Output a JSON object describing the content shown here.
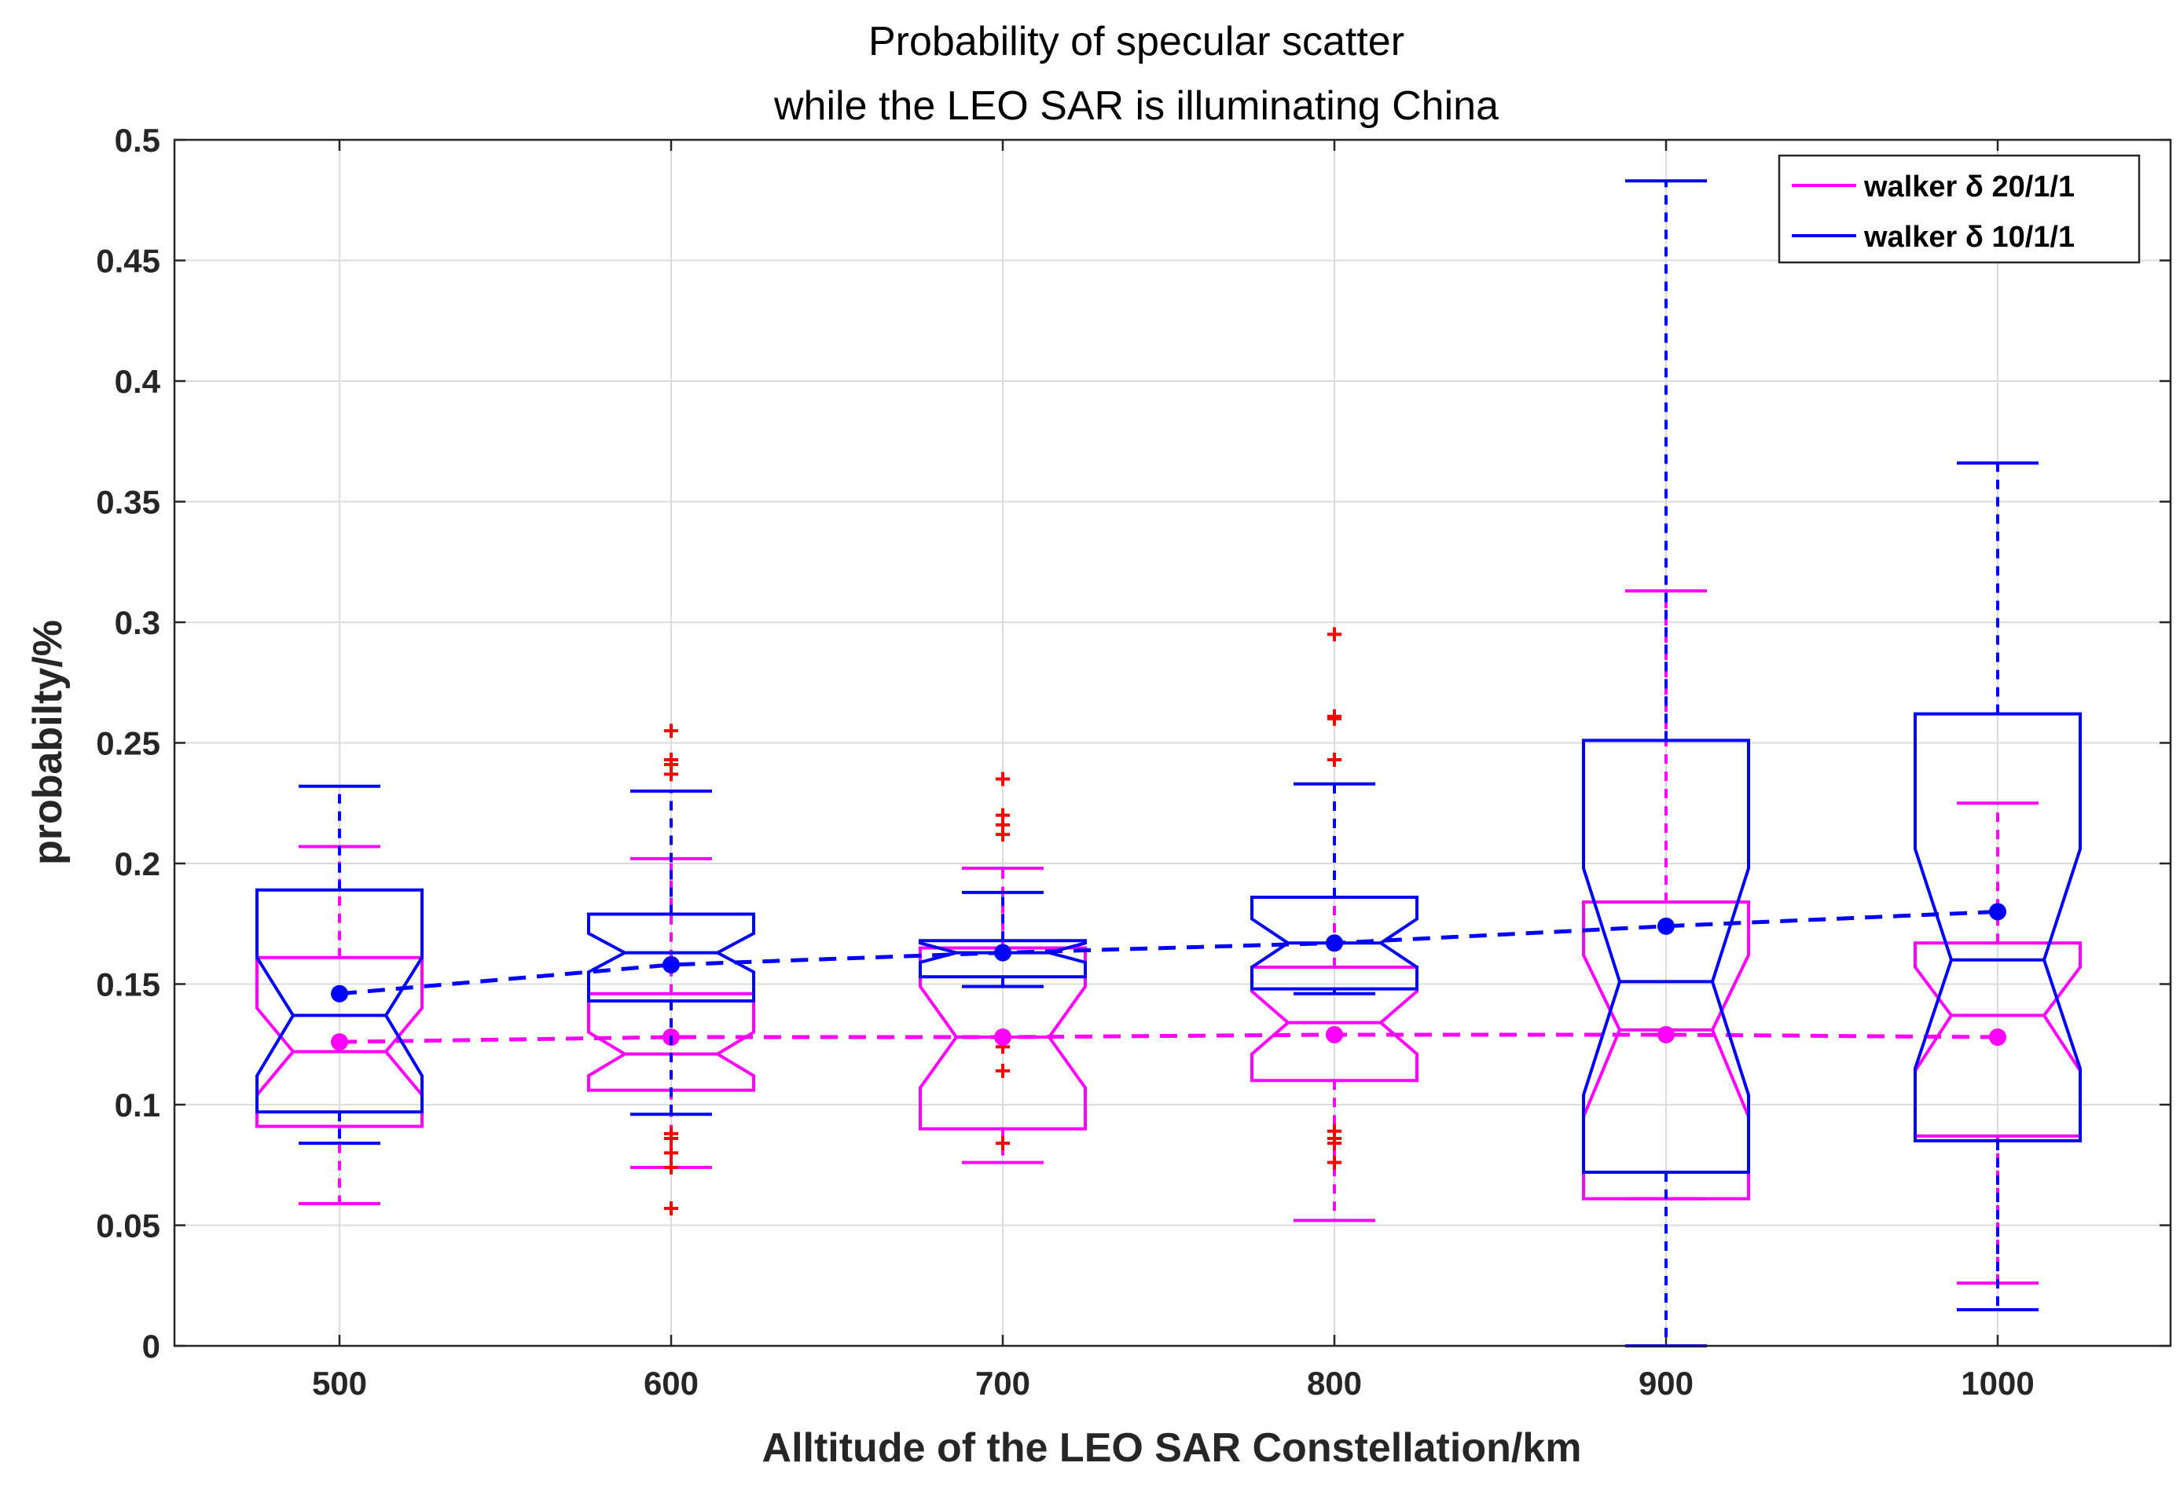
{
  "chart_data": {
    "type": "box",
    "title": "Probability of specular scatter",
    "subtitle": "while the LEO SAR is illuminating China",
    "xlabel": "Alltitude of the LEO SAR Constellation/km",
    "ylabel": "probabilty/%",
    "categories": [
      "500",
      "600",
      "700",
      "800",
      "900",
      "1000"
    ],
    "ylim": [
      0,
      0.5
    ],
    "yticks": [
      0,
      0.05,
      0.1,
      0.15,
      0.2,
      0.25,
      0.3,
      0.35,
      0.4,
      0.45,
      0.5
    ],
    "ytick_labels": [
      "0",
      "0.05",
      "0.1",
      "0.15",
      "0.2",
      "0.25",
      "0.3",
      "0.35",
      "0.4",
      "0.45",
      "0.5"
    ],
    "grid": true,
    "legend_position": "top-right",
    "series": [
      {
        "name": "walker δ 20/1/1",
        "color": "#ff00ff",
        "boxes": [
          {
            "whisker_low": 0.059,
            "q1": 0.091,
            "median": 0.122,
            "q3": 0.161,
            "whisker_high": 0.207,
            "notch_low": 0.104,
            "notch_high": 0.14,
            "outliers": []
          },
          {
            "whisker_low": 0.074,
            "q1": 0.106,
            "median": 0.121,
            "q3": 0.146,
            "whisker_high": 0.202,
            "notch_low": 0.112,
            "notch_high": 0.13,
            "outliers": [
              0.057,
              0.074,
              0.08,
              0.086,
              0.088
            ]
          },
          {
            "whisker_low": 0.076,
            "q1": 0.09,
            "median": 0.128,
            "q3": 0.165,
            "whisker_high": 0.198,
            "notch_low": 0.107,
            "notch_high": 0.149,
            "outliers": [
              0.084,
              0.114,
              0.124,
              0.127
            ]
          },
          {
            "whisker_low": 0.052,
            "q1": 0.11,
            "median": 0.134,
            "q3": 0.157,
            "whisker_high": 0.186,
            "notch_low": 0.121,
            "notch_high": 0.147,
            "outliers": [
              0.076,
              0.084,
              0.086,
              0.089
            ]
          },
          {
            "whisker_low": 0.061,
            "q1": 0.061,
            "median": 0.131,
            "q3": 0.184,
            "whisker_high": 0.313,
            "notch_low": 0.095,
            "notch_high": 0.162,
            "outliers": []
          },
          {
            "whisker_low": 0.026,
            "q1": 0.087,
            "median": 0.137,
            "q3": 0.167,
            "whisker_high": 0.225,
            "notch_low": 0.114,
            "notch_high": 0.157,
            "outliers": []
          }
        ],
        "means": [
          0.126,
          0.128,
          0.128,
          0.129,
          0.129,
          0.128
        ]
      },
      {
        "name": "walker δ 10/1/1",
        "color": "#0000ff",
        "boxes": [
          {
            "whisker_low": 0.084,
            "q1": 0.097,
            "median": 0.137,
            "q3": 0.189,
            "whisker_high": 0.232,
            "notch_low": 0.112,
            "notch_high": 0.161,
            "outliers": []
          },
          {
            "whisker_low": 0.096,
            "q1": 0.143,
            "median": 0.163,
            "q3": 0.179,
            "whisker_high": 0.23,
            "notch_low": 0.155,
            "notch_high": 0.171,
            "outliers": [
              0.237,
              0.241,
              0.243,
              0.255
            ]
          },
          {
            "whisker_low": 0.149,
            "q1": 0.153,
            "median": 0.163,
            "q3": 0.168,
            "whisker_high": 0.188,
            "notch_low": 0.159,
            "notch_high": 0.167,
            "outliers": [
              0.212,
              0.216,
              0.22,
              0.235
            ]
          },
          {
            "whisker_low": 0.146,
            "q1": 0.148,
            "median": 0.167,
            "q3": 0.186,
            "whisker_high": 0.233,
            "notch_low": 0.157,
            "notch_high": 0.177,
            "outliers": [
              0.243,
              0.26,
              0.261,
              0.295
            ]
          },
          {
            "whisker_low": 0.0,
            "q1": 0.072,
            "median": 0.151,
            "q3": 0.251,
            "whisker_high": 0.483,
            "notch_low": 0.104,
            "notch_high": 0.198,
            "outliers": []
          },
          {
            "whisker_low": 0.015,
            "q1": 0.085,
            "median": 0.16,
            "q3": 0.262,
            "whisker_high": 0.366,
            "notch_low": 0.115,
            "notch_high": 0.206,
            "outliers": []
          }
        ],
        "means": [
          0.146,
          0.158,
          0.163,
          0.167,
          0.174,
          0.18
        ]
      }
    ],
    "outlier_color": "#ff0000"
  }
}
